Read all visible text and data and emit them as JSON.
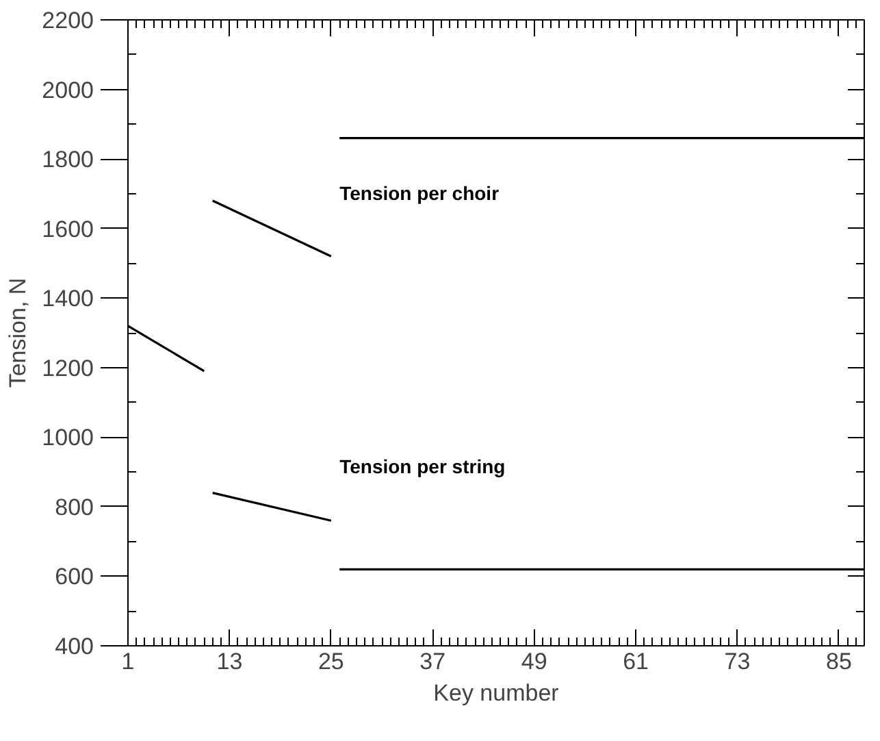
{
  "chart_data": {
    "type": "line",
    "xlabel": "Key number",
    "ylabel": "Tension, N",
    "xlim": [
      1,
      88
    ],
    "ylim": [
      400,
      2200
    ],
    "xticks": [
      1,
      13,
      25,
      37,
      49,
      61,
      73,
      85,
      {
        "value": 2,
        "label": null
      },
      {
        "value": 3,
        "label": null
      },
      {
        "value": 4,
        "label": null
      },
      {
        "value": 5,
        "label": null
      },
      {
        "value": 6,
        "label": null
      },
      {
        "value": 7,
        "label": null
      },
      {
        "value": 8,
        "label": null
      },
      {
        "value": 9,
        "label": null
      },
      {
        "value": 10,
        "label": null
      },
      {
        "value": 11,
        "label": null
      },
      {
        "value": 12,
        "label": null
      },
      {
        "value": 14,
        "label": null
      },
      {
        "value": 15,
        "label": null
      },
      {
        "value": 16,
        "label": null
      },
      {
        "value": 17,
        "label": null
      },
      {
        "value": 18,
        "label": null
      },
      {
        "value": 19,
        "label": null
      },
      {
        "value": 20,
        "label": null
      },
      {
        "value": 21,
        "label": null
      },
      {
        "value": 22,
        "label": null
      },
      {
        "value": 23,
        "label": null
      },
      {
        "value": 24,
        "label": null
      },
      {
        "value": 26,
        "label": null
      },
      {
        "value": 27,
        "label": null
      },
      {
        "value": 28,
        "label": null
      },
      {
        "value": 29,
        "label": null
      },
      {
        "value": 30,
        "label": null
      },
      {
        "value": 31,
        "label": null
      },
      {
        "value": 32,
        "label": null
      },
      {
        "value": 33,
        "label": null
      },
      {
        "value": 34,
        "label": null
      },
      {
        "value": 35,
        "label": null
      },
      {
        "value": 36,
        "label": null
      },
      {
        "value": 38,
        "label": null
      },
      {
        "value": 39,
        "label": null
      },
      {
        "value": 40,
        "label": null
      },
      {
        "value": 41,
        "label": null
      },
      {
        "value": 42,
        "label": null
      },
      {
        "value": 43,
        "label": null
      },
      {
        "value": 44,
        "label": null
      },
      {
        "value": 45,
        "label": null
      },
      {
        "value": 46,
        "label": null
      },
      {
        "value": 47,
        "label": null
      },
      {
        "value": 48,
        "label": null
      },
      {
        "value": 50,
        "label": null
      },
      {
        "value": 51,
        "label": null
      },
      {
        "value": 52,
        "label": null
      },
      {
        "value": 53,
        "label": null
      },
      {
        "value": 54,
        "label": null
      },
      {
        "value": 55,
        "label": null
      },
      {
        "value": 56,
        "label": null
      },
      {
        "value": 57,
        "label": null
      },
      {
        "value": 58,
        "label": null
      },
      {
        "value": 59,
        "label": null
      },
      {
        "value": 60,
        "label": null
      },
      {
        "value": 62,
        "label": null
      },
      {
        "value": 63,
        "label": null
      },
      {
        "value": 64,
        "label": null
      },
      {
        "value": 65,
        "label": null
      },
      {
        "value": 66,
        "label": null
      },
      {
        "value": 67,
        "label": null
      },
      {
        "value": 68,
        "label": null
      },
      {
        "value": 69,
        "label": null
      },
      {
        "value": 70,
        "label": null
      },
      {
        "value": 71,
        "label": null
      },
      {
        "value": 72,
        "label": null
      },
      {
        "value": 74,
        "label": null
      },
      {
        "value": 75,
        "label": null
      },
      {
        "value": 76,
        "label": null
      },
      {
        "value": 77,
        "label": null
      },
      {
        "value": 78,
        "label": null
      },
      {
        "value": 79,
        "label": null
      },
      {
        "value": 80,
        "label": null
      },
      {
        "value": 81,
        "label": null
      },
      {
        "value": 82,
        "label": null
      },
      {
        "value": 83,
        "label": null
      },
      {
        "value": 84,
        "label": null
      },
      {
        "value": 86,
        "label": null
      },
      {
        "value": 87,
        "label": null
      },
      {
        "value": 88,
        "label": null
      }
    ],
    "yticks": [
      400,
      600,
      800,
      1000,
      1200,
      1400,
      1600,
      1800,
      2000,
      2200,
      {
        "value": 500,
        "label": null
      },
      {
        "value": 700,
        "label": null
      },
      {
        "value": 900,
        "label": null
      },
      {
        "value": 1100,
        "label": null
      },
      {
        "value": 1300,
        "label": null
      },
      {
        "value": 1500,
        "label": null
      },
      {
        "value": 1700,
        "label": null
      },
      {
        "value": 1900,
        "label": null
      },
      {
        "value": 2100,
        "label": null
      }
    ],
    "series": [
      {
        "name": "Tension per choir",
        "color": "#000000",
        "x": [
          11,
          25,
          null,
          26,
          88
        ],
        "values": [
          1680,
          1520,
          null,
          1860,
          1860
        ]
      },
      {
        "name": "Tension per string",
        "color": "#000000",
        "x": [
          1,
          10,
          null,
          11,
          25,
          null,
          26,
          88
        ],
        "values": [
          1320,
          1190,
          null,
          840,
          760,
          null,
          620,
          620
        ]
      }
    ],
    "grid": false,
    "marker": "none",
    "line_style": "solid"
  }
}
